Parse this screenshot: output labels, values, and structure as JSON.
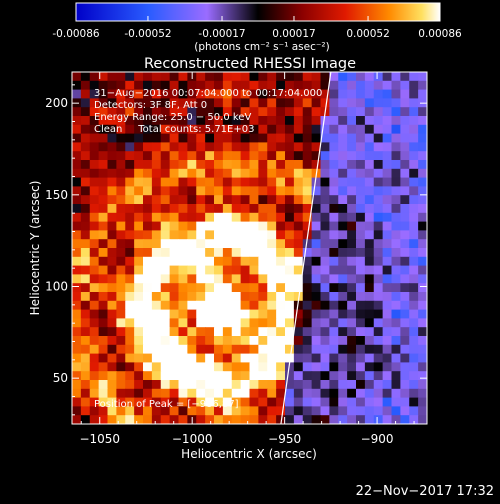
{
  "colorbar": {
    "tick_labels": [
      "-0.00086",
      "-0.00052",
      "-0.00017",
      "0.00017",
      "0.00052",
      "0.00086"
    ],
    "tick_values": [
      -0.00086,
      -0.00052,
      -0.00017,
      0.00017,
      0.00052,
      0.00086
    ],
    "range": [
      -0.00086,
      0.00086
    ],
    "units_label": "(photons cm⁻² s⁻¹ asec⁻²)"
  },
  "plot": {
    "title": "Reconstructed RHESSI Image",
    "xlabel": "Heliocentric X (arcsec)",
    "ylabel": "Heliocentric Y (arcsec)",
    "xlim": [
      -1065,
      -873
    ],
    "ylim": [
      25,
      217
    ],
    "x_ticks": [
      {
        "value": -1050,
        "label": "−1050"
      },
      {
        "value": -1000,
        "label": "−1000"
      },
      {
        "value": -950,
        "label": "−950"
      },
      {
        "value": -900,
        "label": "−900"
      }
    ],
    "y_ticks": [
      {
        "value": 50,
        "label": "50"
      },
      {
        "value": 100,
        "label": "100"
      },
      {
        "value": 150,
        "label": "150"
      },
      {
        "value": 200,
        "label": "200"
      }
    ],
    "annotations": [
      "31−Aug−2016 00:07:04.000 to 00:17:04.000",
      "Detectors: 3F 8F, Att 0",
      "Energy Range: 25.0 − 50.0 keV",
      "Clean     Total counts: 5.71E+03"
    ],
    "peak_label": "Position of Peak = [−986,87]",
    "peak_position": [
      -986,
      87
    ],
    "limb_line": {
      "from": [
        -952,
        25
      ],
      "to": [
        -925,
        217
      ]
    }
  },
  "footer": {
    "timestamp": "22−Nov−2017 17:32"
  },
  "colors": {
    "background": "#000000",
    "text": "#ffffff"
  }
}
